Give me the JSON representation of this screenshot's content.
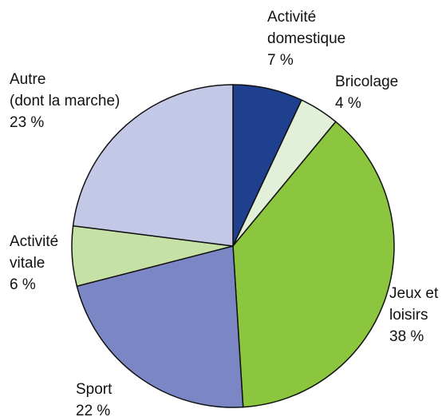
{
  "chart_data": {
    "type": "pie",
    "categories": [
      "Activité\ndomestique",
      "Bricolage",
      "Jeux et\nloisirs",
      "Sport",
      "Activité\nvitale",
      "Autre\n(dont la marche)"
    ],
    "values": [
      7,
      4,
      38,
      22,
      6,
      23
    ],
    "value_labels": [
      "7 %",
      "4 %",
      "38 %",
      "22 %",
      "6 %",
      "23 %"
    ],
    "colors": [
      "#1f3f8f",
      "#e2efd9",
      "#8cc63f",
      "#7b87c4",
      "#c6e1a6",
      "#c3c8e6"
    ]
  }
}
